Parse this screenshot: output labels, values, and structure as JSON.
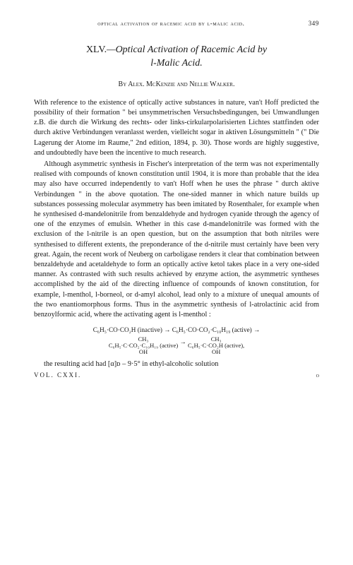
{
  "running_head": {
    "text": "optical activation of racemic acid by l-malic acid.",
    "page_number": "349"
  },
  "title": {
    "number": "XLV.",
    "main": "—Optical Activation of Racemic Acid by",
    "sub": "l-Malic Acid."
  },
  "authors": "By Alex. McKenzie and Nellie Walker.",
  "paragraphs": {
    "p1": "With reference to the existence of optically active substances in nature, van't Hoff predicted the possibility of their formation \" bei unsymmetrischen Versuchsbedingungen, bei Umwandlungen z.B. die durch die Wirkung des rechts- oder links-cirkularpolarisierten Lichtes stattfinden oder durch aktive Verbindungen veranlasst werden, vielleicht sogar in aktiven Lösungsmitteln \" (\" Die Lagerung der Atome im Raume,\" 2nd edition, 1894, p. 30). Those words are highly suggestive, and undoubtedly have been the incentive to much research.",
    "p2": "Although asymmetric synthesis in Fischer's interpretation of the term was not experimentally realised with compounds of known constitution until 1904, it is more than probable that the idea may also have occurred independently to van't Hoff when he uses the phrase \" durch aktive Verbindungen \" in the above quotation. The one-sided manner in which nature builds up substances possessing molecular asymmetry has been imitated by Rosenthaler, for example when he synthesised d-mandelonitrile from benzaldehyde and hydrogen cyanide through the agency of one of the enzymes of emulsin. Whether in this case d-mandelonitrile was formed with the exclusion of the l-nitrile is an open question, but on the assumption that both nitriles were synthesised to different extents, the preponderance of the d-nitrile must certainly have been very great. Again, the recent work of Neuberg on carboligase renders it clear that combination between benzaldehyde and acetaldehyde to form an optically active ketol takes place in a very one-sided manner. As contrasted with such results achieved by enzyme action, the asymmetric syntheses accomplished by the aid of the directing influence of compounds of known constitution, for example, l-menthol, l-borneol, or d-amyl alcohol, lead only to a mixture of unequal amounts of the two enantiomorphous forms. Thus in the asymmetric synthesis of l-atrolactinic acid from benzoylformic acid, where the activating agent is l-menthol :"
  },
  "chemistry": {
    "line1_left": "C₆H₅·CO·CO₂H (inactive)",
    "arrow": " → ",
    "line1_right": "C₆H₅·CO·CO₂·C₁₀H₁₉ (active)",
    "arrow2": " →",
    "line2_left_top": "CH₃",
    "line2_left_mid": "C₆H₅·C·CO₂·C₁₀H₁₉ (active)",
    "line2_left_bot": "OH",
    "line2_right_top": "CH₃",
    "line2_right_mid": "C₆H₅·C·CO₂H (active),",
    "line2_right_bot": "OH"
  },
  "closing": "the resulting acid had [α]ᴅ – 9·5° in ethyl-alcoholic solution",
  "sig": {
    "vol": "VOL. CXXI.",
    "mark": "o"
  }
}
